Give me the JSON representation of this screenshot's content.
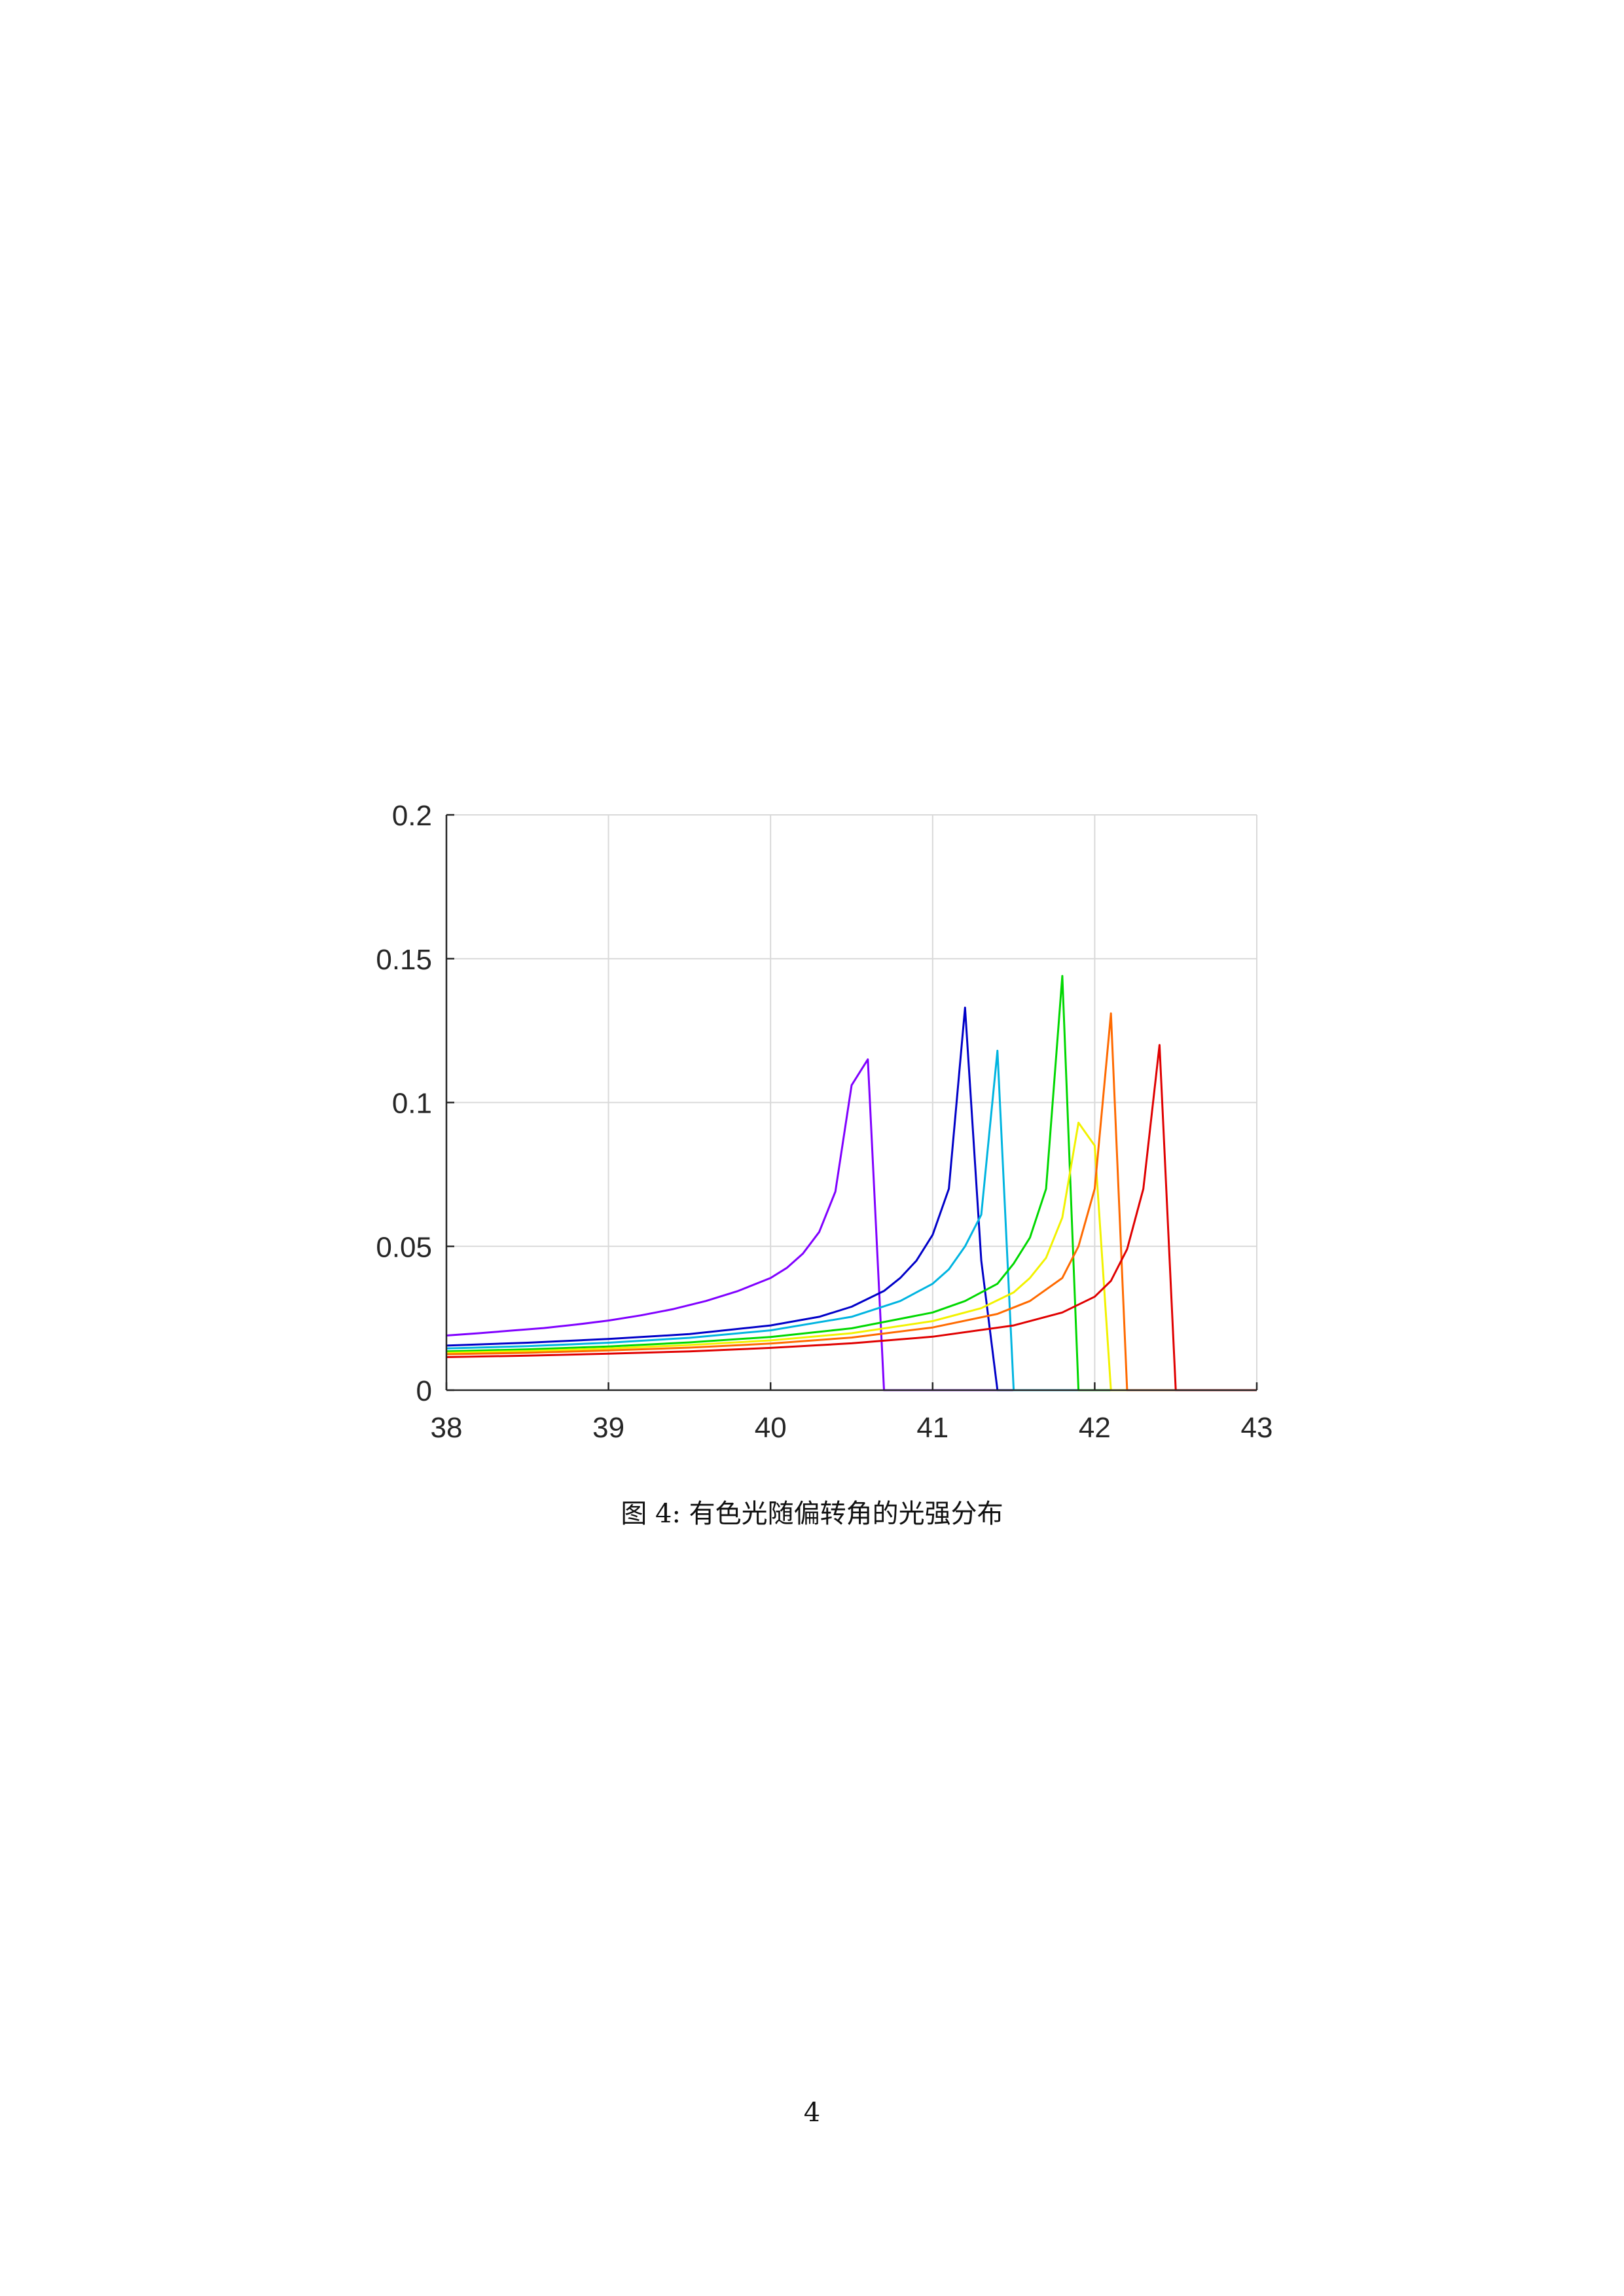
{
  "chart_data": {
    "type": "line",
    "title": "",
    "xlabel": "",
    "ylabel": "",
    "xlim": [
      38,
      43
    ],
    "ylim": [
      0,
      0.2
    ],
    "xticks": [
      "38",
      "39",
      "40",
      "41",
      "42",
      "43"
    ],
    "yticks": [
      "0",
      "0.05",
      "0.1",
      "0.15",
      "0.2"
    ],
    "grid": true,
    "series": [
      {
        "color": "#8000ff",
        "x": [
          38,
          38.2,
          38.4,
          38.6,
          38.8,
          39,
          39.2,
          39.4,
          39.6,
          39.8,
          40,
          40.1,
          40.2,
          40.3,
          40.4,
          40.5,
          40.6,
          40.7,
          40.8,
          40.9,
          43
        ],
        "y": [
          0.019,
          0.0198,
          0.0207,
          0.0216,
          0.0228,
          0.0242,
          0.026,
          0.0282,
          0.031,
          0.0345,
          0.039,
          0.0425,
          0.0475,
          0.055,
          0.069,
          0.106,
          0.115,
          0,
          0,
          0,
          0
        ]
      },
      {
        "color": "#0000c8",
        "x": [
          38,
          38.5,
          39,
          39.5,
          40,
          40.3,
          40.5,
          40.7,
          40.8,
          40.9,
          41,
          41.1,
          41.2,
          41.3,
          41.4,
          43
        ],
        "y": [
          0.0155,
          0.0165,
          0.0178,
          0.0195,
          0.0225,
          0.0255,
          0.029,
          0.0345,
          0.039,
          0.045,
          0.054,
          0.07,
          0.133,
          0.045,
          0,
          0
        ]
      },
      {
        "color": "#00b4e0",
        "x": [
          38,
          38.5,
          39,
          39.5,
          40,
          40.5,
          40.8,
          41,
          41.1,
          41.2,
          41.3,
          41.4,
          41.5,
          43
        ],
        "y": [
          0.0145,
          0.0153,
          0.0165,
          0.0182,
          0.0208,
          0.0255,
          0.031,
          0.037,
          0.042,
          0.05,
          0.061,
          0.118,
          0,
          0
        ]
      },
      {
        "color": "#00d800",
        "x": [
          38,
          38.5,
          39,
          39.5,
          40,
          40.5,
          41,
          41.2,
          41.4,
          41.5,
          41.6,
          41.7,
          41.8,
          41.9,
          43
        ],
        "y": [
          0.0135,
          0.0142,
          0.0152,
          0.0166,
          0.0185,
          0.0215,
          0.027,
          0.031,
          0.037,
          0.044,
          0.053,
          0.07,
          0.144,
          0,
          0
        ]
      },
      {
        "color": "#f2f200",
        "x": [
          38,
          38.5,
          39,
          39.5,
          40,
          40.5,
          41,
          41.3,
          41.5,
          41.6,
          41.7,
          41.8,
          41.9,
          42,
          42.1,
          43
        ],
        "y": [
          0.013,
          0.0136,
          0.0145,
          0.0157,
          0.0173,
          0.0198,
          0.024,
          0.0285,
          0.034,
          0.039,
          0.046,
          0.06,
          0.093,
          0.085,
          0,
          0
        ]
      },
      {
        "color": "#ff6a00",
        "x": [
          38,
          38.5,
          39,
          39.5,
          40,
          40.5,
          41,
          41.4,
          41.6,
          41.8,
          41.9,
          42,
          42.1,
          42.2,
          43
        ],
        "y": [
          0.0125,
          0.013,
          0.0138,
          0.0148,
          0.0162,
          0.0183,
          0.0218,
          0.0265,
          0.031,
          0.039,
          0.05,
          0.07,
          0.131,
          0,
          0
        ]
      },
      {
        "color": "#e00000",
        "x": [
          38,
          38.5,
          39,
          39.5,
          40,
          40.5,
          41,
          41.5,
          41.8,
          42,
          42.1,
          42.2,
          42.3,
          42.4,
          42.5,
          43
        ],
        "y": [
          0.0115,
          0.012,
          0.0127,
          0.0135,
          0.0147,
          0.0163,
          0.0186,
          0.0225,
          0.027,
          0.0325,
          0.038,
          0.049,
          0.07,
          0.12,
          0,
          0
        ]
      }
    ]
  },
  "caption": "图 4: 有色光随偏转角的光强分布",
  "page_number": "4"
}
